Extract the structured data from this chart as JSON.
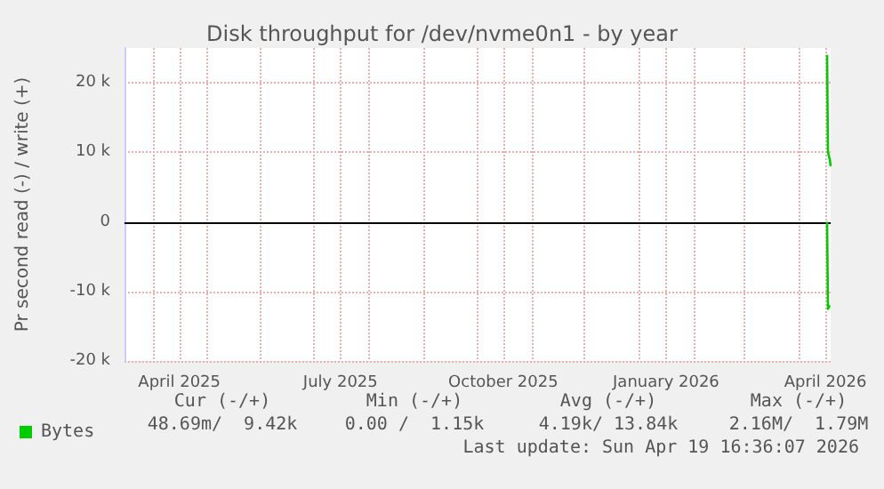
{
  "chart_data": {
    "type": "line",
    "title": "Disk throughput for /dev/nvme0n1 - by year",
    "ylabel": "Pr second read (-) / write (+)",
    "xlim": [
      "2025-03-16",
      "2026-04-19"
    ],
    "xticks": [
      {
        "value": "2025-04-01",
        "label": null
      },
      {
        "value": "2025-04-16",
        "label": "April 2025"
      },
      {
        "value": "2025-05-01",
        "label": null
      },
      {
        "value": "2025-06-01",
        "label": null
      },
      {
        "value": "2025-07-01",
        "label": null
      },
      {
        "value": "2025-07-16",
        "label": "July 2025"
      },
      {
        "value": "2025-08-01",
        "label": null
      },
      {
        "value": "2025-09-01",
        "label": null
      },
      {
        "value": "2025-10-01",
        "label": null
      },
      {
        "value": "2025-10-16",
        "label": "October 2025"
      },
      {
        "value": "2025-11-01",
        "label": null
      },
      {
        "value": "2025-12-01",
        "label": null
      },
      {
        "value": "2026-01-01",
        "label": null
      },
      {
        "value": "2026-01-16",
        "label": "January 2026"
      },
      {
        "value": "2026-02-01",
        "label": null
      },
      {
        "value": "2026-03-01",
        "label": null
      },
      {
        "value": "2026-04-01",
        "label": null
      },
      {
        "value": "2026-04-16",
        "label": "April 2026"
      }
    ],
    "ylim": [
      -20000,
      25000
    ],
    "yticks": [
      {
        "value": -20000,
        "label": "-20 k"
      },
      {
        "value": -10000,
        "label": "-10 k"
      },
      0,
      {
        "value": 10000,
        "label": "10 k"
      },
      {
        "value": 20000,
        "label": "20 k"
      }
    ],
    "grid": true,
    "legend": "bottom left",
    "marker": "none",
    "line_style": "solid",
    "series": [
      {
        "name": "Bytes",
        "color": "#00cc00",
        "x": [
          "2026-04-17T00:00",
          "2026-04-17T12:00",
          "2026-04-18T12:00",
          "2026-04-19T00:00"
        ],
        "values": [
          24000,
          10000,
          9000,
          8000
        ]
      },
      {
        "color": "#00cc00",
        "x": [
          "2026-04-17T00:00",
          "2026-04-17T12:00",
          "2026-04-18T12:00"
        ],
        "values": [
          0,
          -12500,
          -12000
        ]
      }
    ],
    "ref_lines": [
      {
        "axis": "y",
        "value": 0,
        "color": "#000000"
      }
    ],
    "annotations": [
      "Cur (-/+)",
      "Min (-/+)",
      "Avg (-/+)",
      "Max (-/+)",
      "48.69m/  9.42k",
      "0.00 /  1.15k",
      "4.19k/ 13.84k",
      "2.16M/  1.79M",
      "Last update: Sun Apr 19 16:36:07 2026"
    ]
  }
}
